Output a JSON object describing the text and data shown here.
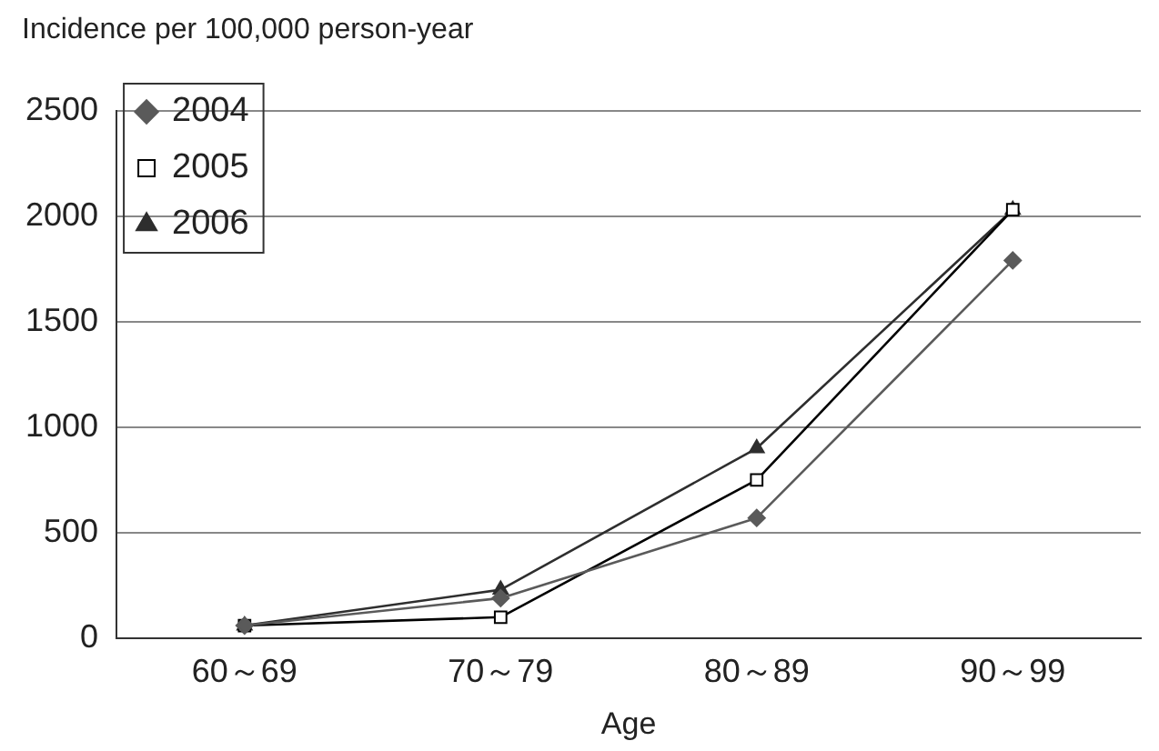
{
  "chart_data": {
    "type": "line",
    "ylabel": "Incidence per 100,000 person-year",
    "xlabel": "Age",
    "categories": [
      "60～69",
      "70～79",
      "80～89",
      "90～99"
    ],
    "series": [
      {
        "name": "2004",
        "color": "#5a5a5a",
        "marker": "diamond",
        "values": [
          60,
          190,
          570,
          1790
        ]
      },
      {
        "name": "2005",
        "color": "#000000",
        "marker": "square",
        "values": [
          60,
          100,
          750,
          2030
        ]
      },
      {
        "name": "2006",
        "color": "#2e2e2e",
        "marker": "triangle",
        "values": [
          60,
          230,
          900,
          2030
        ]
      }
    ],
    "ylim": [
      0,
      2500
    ],
    "yticks": [
      0,
      500,
      1000,
      1500,
      2000,
      2500
    ],
    "grid": "y",
    "legend": "top left"
  }
}
